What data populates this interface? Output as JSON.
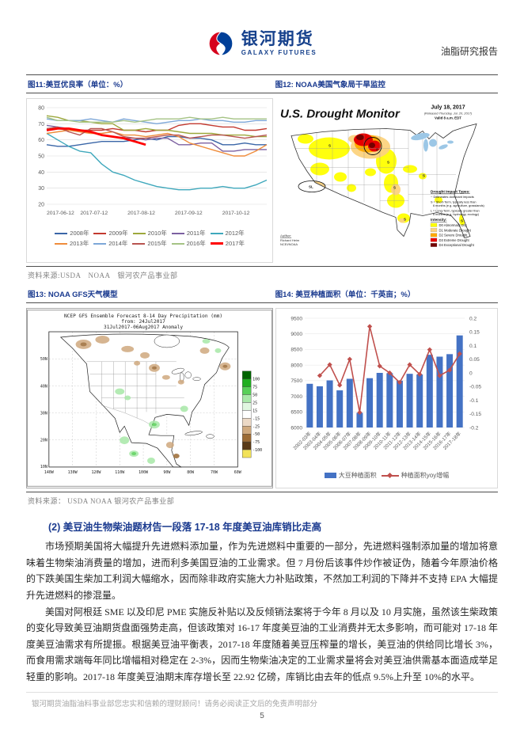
{
  "header": {
    "brand_cn": "银河期货",
    "brand_en": "GALAXY FUTURES",
    "report_type": "油脂研究报告"
  },
  "figures": {
    "fig11_title": "图11:美豆优良率（单位：%）",
    "fig12_title": "图12:  NOAA美国气象局干旱监控",
    "fig13_title": "图13: NOAA GFS天气模型",
    "fig14_title": "图14:  美豆种植面积（单位：千英亩；%）"
  },
  "sources": {
    "row1": "资料来源:USDA　NOAA　银河农产品事业部",
    "row2": "资料来源：  USDA NOAA 银河农产品事业部"
  },
  "drought_map": {
    "title": "U.S. Drought Monitor",
    "date": "July 18, 2017",
    "released": "(Released Thursday, Jul. 20, 2017)",
    "valid": "Valid 8 a.m. EDT",
    "marker_s": "S",
    "marker_sl": "SL",
    "lake_color": "#9CC7E6",
    "legend": {
      "impact_heading": "Drought Impact Types:",
      "impact_note": "~ Delineates dominant impacts",
      "short_term_line1": "S = Short-Term, typically less than",
      "short_term_line2": "6 months (e.g. agriculture, grasslands)",
      "long_term_line1": "L = Long-Term, typically greater than",
      "long_term_line2": "6 months (e.g. hydrology, ecology)",
      "intensity_heading": "Intensity:",
      "levels": [
        {
          "code": "D0",
          "label": "D0 Abnormally Dry",
          "color": "#FFFF00"
        },
        {
          "code": "D1",
          "label": "D1 Moderate Drought",
          "color": "#FCD37F"
        },
        {
          "code": "D2",
          "label": "D2 Severe Drought",
          "color": "#FFAA00"
        },
        {
          "code": "D3",
          "label": "D3 Extreme Drought",
          "color": "#E60000"
        },
        {
          "code": "D4",
          "label": "D4 Exceptional Drought",
          "color": "#730000"
        }
      ]
    },
    "author_line1": "Author:",
    "author_line2": "Richard Heim",
    "author_line3": "NCEI/NOAA"
  },
  "gfs_map": {
    "title_line1": "NCEP GFS Ensemble Forecast 8-14 Day Precipitation (mm)",
    "title_line2": "from: 24Jul2017",
    "title_line3": "31Jul2017-06Aug2017 Anomaly",
    "lat_labels": [
      "50N",
      "40N",
      "30N",
      "20N",
      "10N"
    ],
    "lon_labels": [
      "140W",
      "130W",
      "120W",
      "110W",
      "100W",
      "90W",
      "80W",
      "70W",
      "60W"
    ],
    "colorbar_labels": [
      "100",
      "75",
      "50",
      "25",
      "15",
      "-15",
      "-25",
      "-50",
      "-75",
      "-100"
    ],
    "colorbar_colors": [
      "#006400",
      "#1faf1f",
      "#57d057",
      "#a8e8a8",
      "#e0f7e0",
      "#ffffff",
      "#ecd9c6",
      "#cfa97e",
      "#9c6b34",
      "#5a3a16",
      "#f2e259"
    ]
  },
  "chart_data": [
    {
      "figure": "图11",
      "type": "line",
      "title": "美豆优良率（单位：%）",
      "x_tick_labels": [
        "2017-06-12",
        "2017-07-12",
        "2017-08-12",
        "2017-09-12",
        "2017-10-12"
      ],
      "ylim": [
        20,
        80
      ],
      "y_ticks": [
        20,
        30,
        40,
        50,
        60,
        70,
        80
      ],
      "series": [
        {
          "name": "2008年",
          "color": "#3A66A7",
          "values": [
            57,
            56,
            56,
            57,
            58,
            59,
            59,
            59,
            60,
            61,
            60,
            62,
            62,
            61,
            61,
            60,
            57,
            57,
            58,
            57,
            57
          ]
        },
        {
          "name": "2009年",
          "color": "#C3392F",
          "values": [
            66,
            67,
            66,
            66,
            66,
            66,
            67,
            66,
            66,
            65,
            66,
            66,
            69,
            70,
            70,
            69,
            68,
            68,
            66,
            66,
            67
          ]
        },
        {
          "name": "2010年",
          "color": "#9DA83C",
          "values": [
            75,
            74,
            72,
            72,
            71,
            70,
            70,
            66,
            66,
            67,
            66,
            66,
            65,
            64,
            64,
            64,
            63,
            63,
            63,
            62,
            62
          ]
        },
        {
          "name": "2011年",
          "color": "#7C60A1",
          "values": [
            69,
            68,
            67,
            66,
            65,
            63,
            62,
            61,
            61,
            60,
            61,
            61,
            57,
            57,
            58,
            58,
            53,
            53,
            54,
            54,
            54
          ]
        },
        {
          "name": "2012年",
          "color": "#3FA8BC",
          "values": [
            64,
            60,
            56,
            53,
            52,
            45,
            40,
            38,
            35,
            33,
            31,
            30,
            29,
            29,
            30,
            30,
            31,
            30,
            30,
            32,
            35
          ]
        },
        {
          "name": "2013年",
          "color": "#EF8C3B",
          "values": [
            64,
            65,
            66,
            65,
            64,
            64,
            65,
            63,
            63,
            62,
            63,
            64,
            62,
            58,
            56,
            54,
            52,
            50,
            50,
            53,
            57
          ]
        },
        {
          "name": "2014年",
          "color": "#7DA7D8",
          "values": [
            73,
            72,
            72,
            72,
            73,
            72,
            71,
            73,
            72,
            71,
            70,
            71,
            72,
            72,
            73,
            72,
            72,
            71,
            71,
            72,
            72
          ]
        },
        {
          "name": "2015年",
          "color": "#B85450",
          "values": [
            67,
            68,
            65,
            63,
            67,
            67,
            65,
            62,
            61,
            61,
            62,
            63,
            63,
            61,
            62,
            63,
            63,
            62,
            61,
            62,
            63
          ]
        },
        {
          "name": "2016年",
          "color": "#A5C385",
          "values": [
            74,
            72,
            72,
            71,
            71,
            71,
            71,
            72,
            71,
            72,
            73,
            73,
            73,
            74,
            73,
            73,
            74,
            73,
            73,
            73,
            73
          ]
        },
        {
          "name": "2017年",
          "color": "#FF0000",
          "bold": true,
          "values": [
            66,
            67,
            67,
            66,
            65,
            63,
            62,
            61,
            59,
            57
          ]
        }
      ]
    },
    {
      "figure": "图14",
      "type": "bar+line",
      "title": "美豆种植面积（单位：千英亩；%）",
      "categories": [
        "2002-03年",
        "2003-04年",
        "2004-05年",
        "2005-06年",
        "2006-07年",
        "2007-08年",
        "2008-09年",
        "2009-10年",
        "2010-11年",
        "2011-12年",
        "2012-13年",
        "2013-14年",
        "2014-15年",
        "2015-16年",
        "2016-17年",
        "2017-18年"
      ],
      "bar_series": {
        "name": "大豆种植面积",
        "color": "#4472C4",
        "values": [
          7400,
          7320,
          7510,
          7190,
          7560,
          6470,
          7580,
          7750,
          7740,
          7500,
          7720,
          7700,
          8330,
          8270,
          8350,
          8950
        ]
      },
      "line_series": {
        "name": "种植面积yoy增幅",
        "color": "#C0504D",
        "values": [
          null,
          -0.01,
          0.03,
          -0.045,
          0.05,
          -0.145,
          0.17,
          0.025,
          0,
          -0.035,
          0.03,
          -0.005,
          0.085,
          -0.01,
          0.01,
          0.07
        ]
      },
      "left_ylim": [
        6000,
        9500
      ],
      "left_ticks": [
        6000,
        6500,
        7000,
        7500,
        8000,
        8500,
        9000,
        9500
      ],
      "right_ylim": [
        -0.2,
        0.2
      ],
      "right_ticks": [
        "0.2",
        "0.15",
        "0.1",
        "0.05",
        "0",
        "-0.05",
        "-0.1",
        "-0.15",
        "-0.2"
      ]
    }
  ],
  "section": {
    "heading": "(2) 美豆油生物柴油题材告一段落 17-18 年度美豆油库销比走高",
    "para1": "市场预期美国将大幅提升先进燃料添加量，作为先进燃料中重要的一部分，先进燃料强制添加量的增加将意味着生物柴油消费量的增加，进而利多美国豆油的工业需求。但 7 月份后该事件炒作被证伪，随着今年原油价格的下跌美国生柴加工利润大幅缩水，因而除非政府实施大力补贴政策，不然加工利润的下降并不支持 EPA 大幅提升先进燃料的掺混量。",
    "para2": "美国对阿根廷 SME 以及印尼 PME 实施反补贴以及反倾销法案将于今年 8 月以及 10 月实施，虽然该生柴政策的变化导致美豆油期货盘面强势走高，但该政策对 16-17 年度美豆油的工业消费并无太多影响，而可能对 17-18 年度美豆油需求有所提振。根据美豆油平衡表，2017-18 年度随着美豆压榨量的增长，美豆油的供给同比增长 3%，而食用需求端每年同比增幅相对稳定在 2-3%，因而生物柴油决定的工业需求量将会对美豆油供需基本面造成举足轻重的影响。2017-18 年度美豆油期末库存增长至 22.92 亿磅，库销比由去年的低点 9.5%上升至 10%的水平。",
    "footer_disclaimer": "银河期货油脂油料事业部您忠实和信赖的理财顾问！请务必阅读正文后的免责声明部分",
    "page_number": "5"
  }
}
